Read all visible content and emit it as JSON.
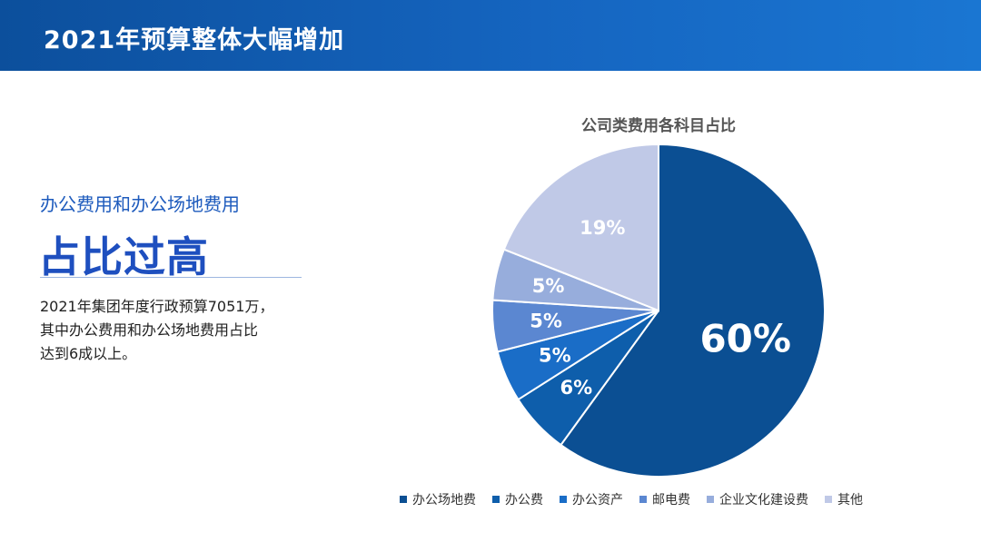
{
  "header": {
    "title": "2021年预算整体大幅增加",
    "background": "#1565c0"
  },
  "left": {
    "subheading": "办公费用和办公场地费用",
    "headline": "占比过高",
    "description": [
      "2021年集团年度行政预算7051万，",
      "其中办公费用和办公场地费用占比",
      "达到6成以上。"
    ]
  },
  "chart_data": {
    "type": "pie",
    "title": "公司类费用各科目占比",
    "categories": [
      "办公场地费",
      "办公费",
      "办公资产",
      "邮电费",
      "企业文化建设费",
      "其他"
    ],
    "values": [
      60,
      6,
      5,
      5,
      5,
      19
    ],
    "labels": [
      "60%",
      "6%",
      "5%",
      "5%",
      "5%",
      "19%"
    ],
    "colors": [
      "#0b4f93",
      "#0e5eab",
      "#1a6dc7",
      "#5b87d1",
      "#97addc",
      "#c0c9e7"
    ],
    "legend_position": "bottom"
  }
}
